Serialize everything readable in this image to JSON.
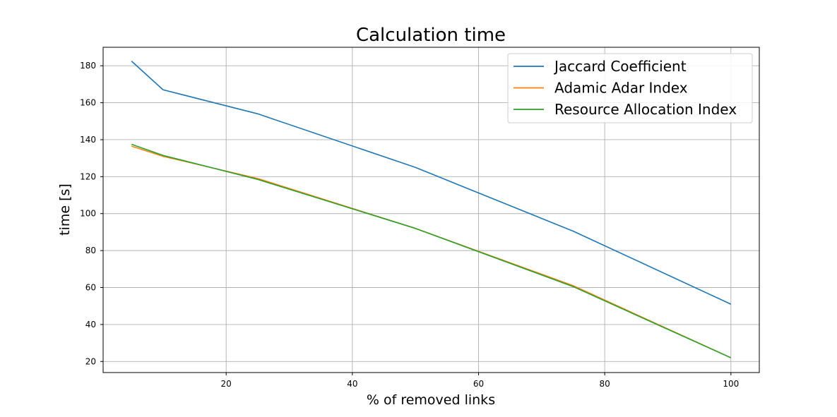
{
  "chart_data": {
    "type": "line",
    "title": "Calculation time",
    "xlabel": "% of removed links",
    "ylabel": "time [s]",
    "xlim": [
      0.5,
      104.5
    ],
    "ylim": [
      14,
      190
    ],
    "xticks": [
      20,
      40,
      60,
      80,
      100
    ],
    "yticks": [
      20,
      40,
      60,
      80,
      100,
      120,
      140,
      160,
      180
    ],
    "grid": true,
    "legend_position": "upper right",
    "x": [
      5,
      10,
      25,
      50,
      75,
      100
    ],
    "series": [
      {
        "name": "Jaccard Coefficient",
        "color": "#1f77b4",
        "values": [
          182.5,
          167,
          154,
          125,
          90.5,
          51
        ]
      },
      {
        "name": "Adamic Adar Index",
        "color": "#ff7f0e",
        "values": [
          136.5,
          131,
          119,
          92,
          61,
          22
        ]
      },
      {
        "name": "Resource Allocation Index",
        "color": "#2ca02c",
        "values": [
          137.5,
          131.5,
          118.5,
          92,
          60.5,
          22
        ]
      }
    ]
  }
}
